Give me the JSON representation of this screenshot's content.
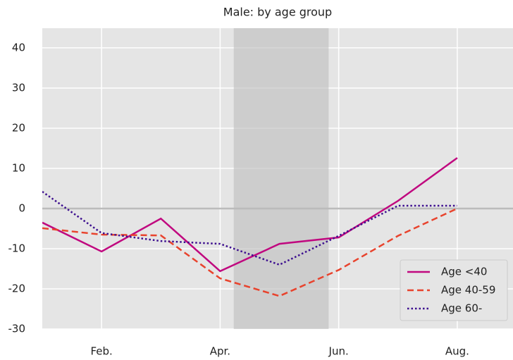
{
  "chart_data": {
    "type": "line",
    "title": "Male: by age group",
    "categories": [
      null,
      "Feb.",
      null,
      "Apr.",
      null,
      "Jun.",
      null,
      "Aug."
    ],
    "xlim": [
      0,
      7.94
    ],
    "span": [
      3.23,
      4.83
    ],
    "series": [
      {
        "name": "Age <40",
        "color": "#c0087f",
        "style": "solid",
        "values": [
          -3.5,
          -10.7,
          -2.5,
          -15.6,
          -8.8,
          -7.2,
          1.9,
          12.6
        ]
      },
      {
        "name": "Age 40-59",
        "color": "#e8432d",
        "style": "dashed",
        "values": [
          -4.9,
          -6.5,
          -6.7,
          -17.4,
          -21.8,
          -15.3,
          -6.8,
          0
        ]
      },
      {
        "name": "Age 60-",
        "color": "#3d0f8f",
        "style": "dotted",
        "values": [
          4.2,
          -6.1,
          -8.1,
          -8.8,
          -14.0,
          -6.8,
          0.7,
          0.7
        ]
      }
    ],
    "ylim": [
      -30,
      44.9
    ],
    "yticks": [
      -30,
      -20,
      -10,
      0,
      10,
      20,
      30,
      40
    ],
    "grid": true,
    "zero_line": true,
    "legend": "lower right"
  }
}
